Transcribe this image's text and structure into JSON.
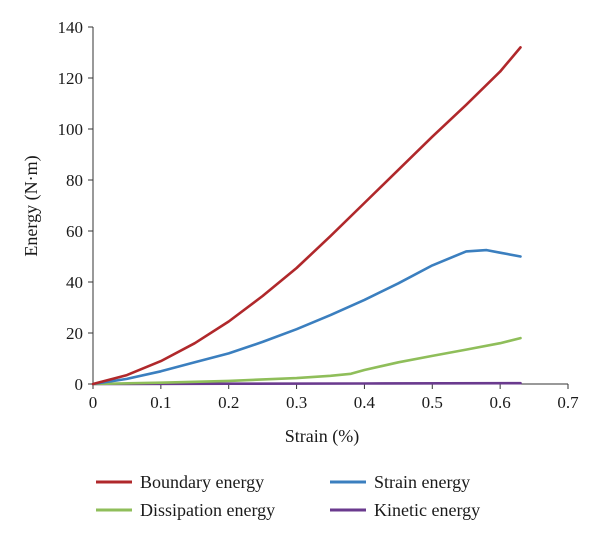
{
  "chart_data": {
    "type": "line",
    "xlabel": "Strain (%)",
    "ylabel": "Energy (N·m)",
    "xlim": [
      0,
      0.7
    ],
    "ylim": [
      0,
      140
    ],
    "x_ticks": [
      "0",
      "0.1",
      "0.2",
      "0.3",
      "0.4",
      "0.5",
      "0.6",
      "0.7"
    ],
    "y_ticks": [
      "0",
      "20",
      "40",
      "60",
      "80",
      "100",
      "120",
      "140"
    ],
    "grid": false,
    "legend_position": "bottom",
    "series": [
      {
        "name": "Boundary energy",
        "color": "#b0282b",
        "x": [
          0,
          0.05,
          0.1,
          0.15,
          0.2,
          0.25,
          0.3,
          0.35,
          0.4,
          0.45,
          0.5,
          0.55,
          0.6,
          0.63
        ],
        "y": [
          0,
          3.5,
          9,
          16,
          24.5,
          34.5,
          45.5,
          58,
          71,
          84,
          97,
          109.5,
          122.5,
          132
        ]
      },
      {
        "name": "Strain energy",
        "color": "#3b7fbf",
        "x": [
          0,
          0.05,
          0.1,
          0.15,
          0.2,
          0.25,
          0.3,
          0.35,
          0.4,
          0.45,
          0.5,
          0.55,
          0.58,
          0.6,
          0.63
        ],
        "y": [
          0,
          2,
          5,
          8.5,
          12,
          16.5,
          21.5,
          27,
          33,
          39.5,
          46.5,
          52,
          52.5,
          51.5,
          50
        ]
      },
      {
        "name": "Dissipation energy",
        "color": "#8fbe5a",
        "x": [
          0,
          0.1,
          0.2,
          0.3,
          0.35,
          0.38,
          0.4,
          0.45,
          0.5,
          0.55,
          0.6,
          0.63
        ],
        "y": [
          0,
          0.5,
          1.2,
          2.3,
          3.2,
          4,
          5.5,
          8.5,
          11,
          13.5,
          16,
          18
        ]
      },
      {
        "name": "Kinetic energy",
        "color": "#6a3a8e",
        "x": [
          0,
          0.2,
          0.4,
          0.63
        ],
        "y": [
          0,
          0.1,
          0.2,
          0.3
        ]
      }
    ]
  }
}
